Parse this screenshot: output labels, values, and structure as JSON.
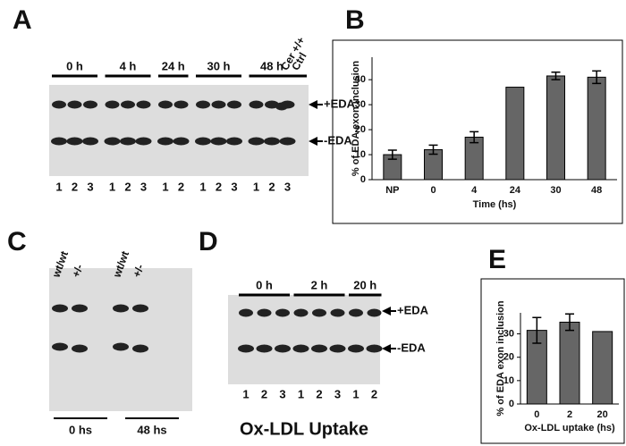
{
  "panel_labels": [
    "A",
    "B",
    "C",
    "D",
    "E"
  ],
  "gel_a": {
    "groups": [
      {
        "label": "0 h",
        "lanes": [
          "1",
          "2",
          "3"
        ]
      },
      {
        "label": "4 h",
        "lanes": [
          "1",
          "2",
          "3"
        ]
      },
      {
        "label": "24 h",
        "lanes": [
          "1",
          "2"
        ]
      },
      {
        "label": "30 h",
        "lanes": [
          "1",
          "2",
          "3"
        ]
      },
      {
        "label": "48 h",
        "lanes": [
          "1",
          "2",
          "3"
        ]
      }
    ],
    "controls": [
      "Cer +/+",
      "Ctrl"
    ],
    "bands": [
      "+EDA",
      "-EDA"
    ]
  },
  "gel_c": {
    "lanes": [
      "wt/wt",
      "+/-",
      "wt/wt",
      "+/-"
    ],
    "groups": [
      "0 hs",
      "48 hs"
    ]
  },
  "gel_d": {
    "groups": [
      {
        "label": "0 h",
        "lanes": [
          "1",
          "2",
          "3"
        ]
      },
      {
        "label": "2 h",
        "lanes": [
          "1",
          "2",
          "3"
        ]
      },
      {
        "label": "20 h",
        "lanes": [
          "1",
          "2"
        ]
      }
    ],
    "bands": [
      "+EDA",
      "-EDA"
    ],
    "caption": "Ox-LDL Uptake"
  },
  "chart_data": [
    {
      "type": "bar",
      "ylabel": "% of EDA exon inclusion",
      "xlabel": "Time (hs)",
      "categories": [
        "NP",
        "0",
        "4",
        "24",
        "30",
        "48"
      ],
      "values": [
        10,
        12,
        17,
        37,
        41.5,
        41
      ],
      "errors": [
        1.8,
        1.8,
        2.2,
        null,
        1.5,
        2.5
      ],
      "color": "#666666",
      "ylim": [
        0,
        49
      ],
      "yticks": [
        0,
        10,
        20,
        30,
        40
      ]
    },
    {
      "type": "bar",
      "ylabel": "% of EDA exon inclusion",
      "xlabel": "Ox-LDL uptake (hs)",
      "categories": [
        "0",
        "2",
        "20"
      ],
      "values": [
        31.5,
        35,
        31
      ],
      "errors": [
        5.5,
        3.5,
        null
      ],
      "color": "#666666",
      "ylim": [
        0,
        39
      ],
      "yticks": [
        0,
        10,
        20,
        30
      ]
    }
  ]
}
